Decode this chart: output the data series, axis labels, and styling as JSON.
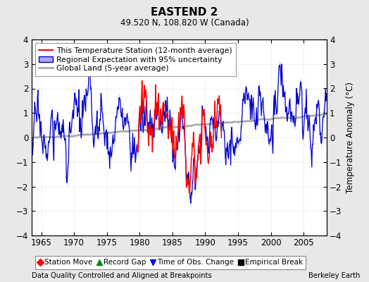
{
  "title": "EASTEND 2",
  "subtitle": "49.520 N, 108.820 W (Canada)",
  "ylabel": "Temperature Anomaly (°C)",
  "xlabel_left": "Data Quality Controlled and Aligned at Breakpoints",
  "xlabel_right": "Berkeley Earth",
  "ylim": [
    -4,
    4
  ],
  "xlim": [
    1963.5,
    2008.5
  ],
  "yticks": [
    -4,
    -3,
    -2,
    -1,
    0,
    1,
    2,
    3,
    4
  ],
  "xticks": [
    1965,
    1970,
    1975,
    1980,
    1985,
    1990,
    1995,
    2000,
    2005
  ],
  "background_color": "#e8e8e8",
  "plot_bg_color": "#ffffff",
  "regional_color": "#0000cc",
  "regional_fill_color": "#aaaaee",
  "station_color": "#ff0000",
  "global_color": "#aaaaaa",
  "legend_entries": [
    "This Temperature Station (12-month average)",
    "Regional Expectation with 95% uncertainty",
    "Global Land (5-year average)"
  ],
  "bottom_legend": [
    {
      "label": "Station Move",
      "color": "#ff0000",
      "marker": "D"
    },
    {
      "label": "Record Gap",
      "color": "#008800",
      "marker": "^"
    },
    {
      "label": "Time of Obs. Change",
      "color": "#0000ff",
      "marker": "v"
    },
    {
      "label": "Empirical Break",
      "color": "#000000",
      "marker": "s"
    }
  ],
  "seed": 17,
  "start_year": 1963.5,
  "end_year": 2008.5,
  "n_points": 540,
  "station_start_year": 1979.5,
  "station_end_year": 1992.5
}
